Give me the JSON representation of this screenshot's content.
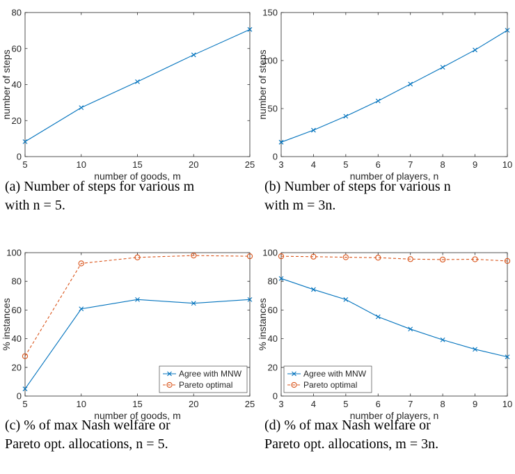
{
  "chart_data": [
    {
      "type": "line",
      "caption": [
        "(a) Number of steps for various m",
        "with n = 5."
      ],
      "xlabel": "number of goods, m",
      "ylabel": "number of steps",
      "xlim": [
        5,
        25
      ],
      "ylim": [
        0,
        80
      ],
      "xticks": [
        5,
        10,
        15,
        20,
        25
      ],
      "yticks": [
        0,
        20,
        40,
        60,
        80
      ],
      "grid": false,
      "legend": null,
      "series": [
        {
          "color": "#0072BD",
          "marker": "x",
          "dashed": false,
          "x": [
            5,
            10,
            15,
            20,
            25
          ],
          "y": [
            8.3,
            27.2,
            41.6,
            56.5,
            70.6
          ]
        }
      ]
    },
    {
      "type": "line",
      "caption": [
        "(b) Number of steps for various n",
        "with m = 3n."
      ],
      "xlabel": "number of players, n",
      "ylabel": "number of steps",
      "xlim": [
        3,
        10
      ],
      "ylim": [
        0,
        150
      ],
      "xticks": [
        3,
        4,
        5,
        6,
        7,
        8,
        9,
        10
      ],
      "yticks": [
        0,
        50,
        100,
        150
      ],
      "grid": false,
      "legend": null,
      "series": [
        {
          "color": "#0072BD",
          "marker": "x",
          "dashed": false,
          "x": [
            3,
            4,
            5,
            6,
            7,
            8,
            9,
            10
          ],
          "y": [
            15,
            27.5,
            42,
            58,
            75.5,
            93,
            111,
            131.5
          ]
        }
      ]
    },
    {
      "type": "line",
      "caption": [
        "(c) % of max Nash welfare or",
        "Pareto opt. allocations, n = 5."
      ],
      "xlabel": "number of goods, m",
      "ylabel": "% instances",
      "xlim": [
        5,
        25
      ],
      "ylim": [
        0,
        100
      ],
      "xticks": [
        5,
        10,
        15,
        20,
        25
      ],
      "yticks": [
        0,
        20,
        40,
        60,
        80,
        100
      ],
      "grid": false,
      "legend": "bottom-right",
      "series": [
        {
          "name": "Agree with MNW",
          "color": "#0072BD",
          "marker": "x",
          "dashed": false,
          "x": [
            5,
            10,
            15,
            20,
            25
          ],
          "y": [
            5,
            60.8,
            67.3,
            64.7,
            67.3
          ]
        },
        {
          "name": "Pareto optimal",
          "color": "#D95319",
          "marker": "o",
          "dashed": true,
          "x": [
            5,
            10,
            15,
            20,
            25
          ],
          "y": [
            27.8,
            92.5,
            96.7,
            98,
            97.5
          ]
        }
      ]
    },
    {
      "type": "line",
      "caption": [
        "(d) % of max Nash welfare or",
        "Pareto opt. allocations, m = 3n."
      ],
      "xlabel": "number of players, n",
      "ylabel": "% instances",
      "xlim": [
        3,
        10
      ],
      "ylim": [
        0,
        100
      ],
      "xticks": [
        3,
        4,
        5,
        6,
        7,
        8,
        9,
        10
      ],
      "yticks": [
        0,
        20,
        40,
        60,
        80,
        100
      ],
      "grid": false,
      "legend": "bottom-left",
      "series": [
        {
          "name": "Agree with MNW",
          "color": "#0072BD",
          "marker": "x",
          "dashed": false,
          "x": [
            3,
            4,
            5,
            6,
            7,
            8,
            9,
            10
          ],
          "y": [
            82,
            74.3,
            67.3,
            55.3,
            46.7,
            39.2,
            32.6,
            27.3
          ]
        },
        {
          "name": "Pareto optimal",
          "color": "#D95319",
          "marker": "o",
          "dashed": true,
          "x": [
            3,
            4,
            5,
            6,
            7,
            8,
            9,
            10
          ],
          "y": [
            97.5,
            97.2,
            96.8,
            96.5,
            95.5,
            95.2,
            95.4,
            94.2
          ]
        }
      ]
    }
  ]
}
